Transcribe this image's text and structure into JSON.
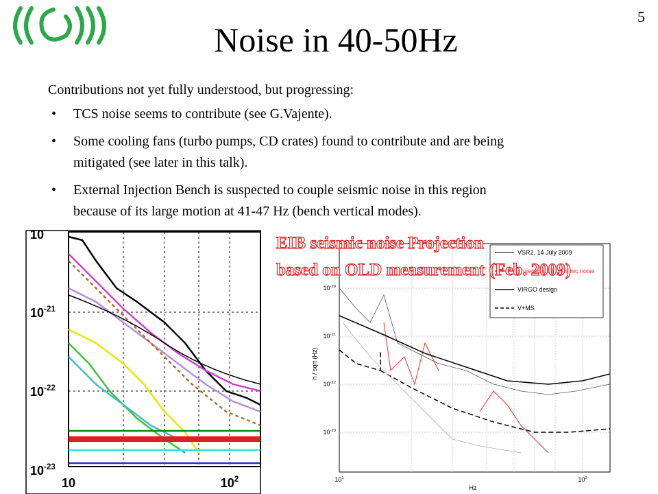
{
  "slide_number": "5",
  "title": "Noise in 40-50Hz",
  "intro": "Contributions not yet fully understood, but progressing:",
  "bullets": [
    [
      "TCS noise seems to contribute (see G.Vajente)."
    ],
    [
      "Some cooling fans (turbo pumps, CD crates) found to contribute and are being",
      "mitigated (see later in this talk)."
    ],
    [
      "External Injection Bench is suspected to couple seismic noise in this region",
      "because of its large motion at 41-47 Hz (bench vertical modes)."
    ]
  ],
  "left_plot": {
    "yticks": [
      {
        "base": "10"
      },
      {
        "base": "10",
        "exp": "-21"
      },
      {
        "base": "10",
        "exp": "-22"
      },
      {
        "base": "10",
        "exp": "-23"
      }
    ],
    "xticks": [
      {
        "base": "10"
      },
      {
        "base": "10",
        "exp": "2"
      }
    ]
  },
  "right_plot": {
    "overlay": [
      "EIB seismic noise Projection",
      "based on OLD measurement (Feb. 2009)"
    ],
    "legend": [
      "VSR2, 14 July 2009",
      "projection EIB seismic noise",
      "VIRGO design",
      "V+MS"
    ],
    "ylabel": "h / sqrt (Hz)",
    "xlabel": "Hz",
    "yticks": [
      {
        "base": "10",
        "exp": "-20"
      },
      {
        "base": "10",
        "exp": "-21"
      },
      {
        "base": "10",
        "exp": "-22"
      },
      {
        "base": "10",
        "exp": "-23"
      }
    ],
    "xticks": [
      {
        "base": "10",
        "exp": "1"
      },
      {
        "base": "10",
        "exp": "2"
      }
    ]
  }
}
